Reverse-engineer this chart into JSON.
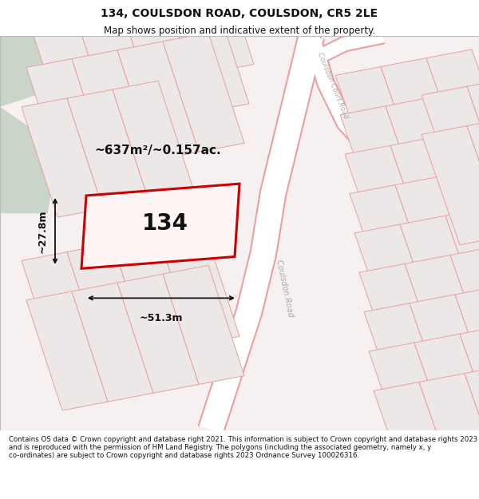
{
  "title": "134, COULSDON ROAD, COULSDON, CR5 2LE",
  "subtitle": "Map shows position and indicative extent of the property.",
  "footer": "Contains OS data © Crown copyright and database right 2021. This information is subject to Crown copyright and database rights 2023 and is reproduced with the permission of HM Land Registry. The polygons (including the associated geometry, namely x, y co-ordinates) are subject to Crown copyright and database rights 2023 Ordnance Survey 100026316.",
  "map_bg": "#f7f0f0",
  "green_color": "#c8d5c8",
  "road_white": "#ffffff",
  "road_edge": "#e8a0a0",
  "building_fill": "#ede8e8",
  "building_edge": "#e8a0a0",
  "plot_fill": "#fff5f5",
  "plot_edge": "#cc0000",
  "dim_color": "#111111",
  "area_text": "~637m²/~0.157ac.",
  "plot_number": "134",
  "dim_width": "~51.3m",
  "dim_height": "~27.8m",
  "road_label_1": "Coulsdon Road",
  "road_label_2": "Coulsdon Court Road",
  "label_color": "#aaaaaa",
  "title_fontsize": 10,
  "subtitle_fontsize": 8.5,
  "footer_fontsize": 6.2
}
